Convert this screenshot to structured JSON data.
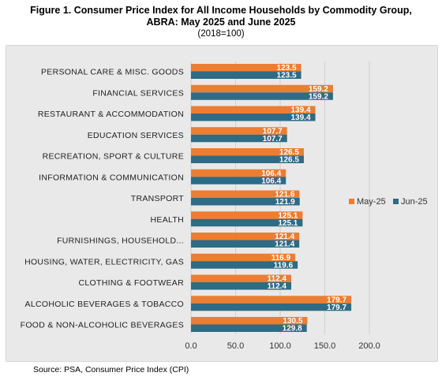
{
  "figure": {
    "title_line1": "Figure 1. Consumer Price Index for All Income Households by Commodity Group,",
    "title_line2": "ABRA: May 2025 and June 2025",
    "subtitle": "(2018=100)"
  },
  "source": "Source: PSA, Consumer Price Index (CPI)",
  "colors": {
    "may": "#ed7d31",
    "jun": "#2e6b84",
    "panel": "#e9e9e9",
    "grid": "#d0d0d0"
  },
  "chart_data": {
    "type": "bar",
    "orientation": "horizontal",
    "categories": [
      "PERSONAL CARE & MISC. GOODS",
      "FINANCIAL SERVICES",
      "RESTAURANT & ACCOMMODATION",
      "EDUCATION SERVICES",
      "RECREATION, SPORT & CULTURE",
      "INFORMATION & COMMUNICATION",
      "TRANSPORT",
      "HEALTH",
      "FURNISHINGS, HOUSEHOLD...",
      "HOUSING, WATER, ELECTRICITY, GAS",
      "CLOTHING & FOOTWEAR",
      "ALCOHOLIC BEVERAGES & TOBACCO",
      "FOOD & NON-ALCOHOLIC BEVERAGES"
    ],
    "series": [
      {
        "name": "May-25",
        "values": [
          123.5,
          159.2,
          139.4,
          107.7,
          126.5,
          106.4,
          121.6,
          125.1,
          121.4,
          116.9,
          112.4,
          179.7,
          130.5
        ]
      },
      {
        "name": "Jun-25",
        "values": [
          123.5,
          159.2,
          139.4,
          107.7,
          126.5,
          106.4,
          121.9,
          125.1,
          121.4,
          119.6,
          112.4,
          179.7,
          129.8
        ]
      }
    ],
    "data_labels": {
      "May-25": [
        "123.5",
        "159.2",
        "139.4",
        "107.7",
        "126.5",
        "106.4",
        "121.6",
        "125.1",
        "121.4",
        "116.9",
        "112.4",
        "179.7",
        "130.5"
      ],
      "Jun-25": [
        "123.5",
        "159.2",
        "139.4",
        "107.7",
        "126.5",
        "106.4",
        "121.9",
        "125.1",
        "121.4",
        "119.6",
        "112.4",
        "179.7",
        "129.8"
      ]
    },
    "xlim": [
      0,
      200
    ],
    "x_ticks": [
      "0.0",
      "50.0",
      "100.0",
      "150.0",
      "200.0"
    ],
    "grid": true,
    "legend": "right"
  }
}
